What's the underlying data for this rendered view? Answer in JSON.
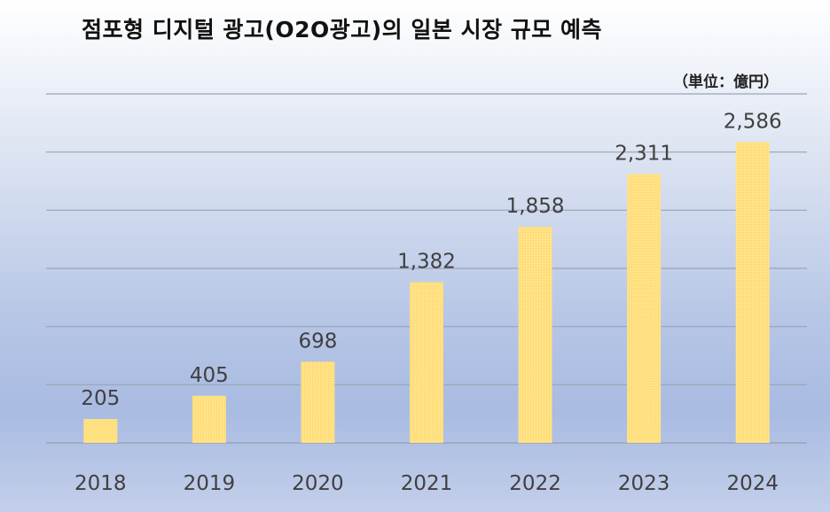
{
  "chart_data": {
    "type": "bar",
    "title": "점포형 디지털 광고(O2O광고)의 일본 시장 규모 예측",
    "unit_label": "（単位：億円）",
    "categories": [
      "2018",
      "2019",
      "2020",
      "2021",
      "2022",
      "2023",
      "2024"
    ],
    "values": [
      205,
      405,
      698,
      1382,
      1858,
      2311,
      2586
    ],
    "data_labels": [
      "205",
      "405",
      "698",
      "1,382",
      "1,858",
      "2,311",
      "2,586"
    ],
    "ylim": [
      0,
      3000
    ],
    "grid": true,
    "legend": "none",
    "colors": {
      "bar": "#ffe38a",
      "bar_dot": "#ffd35a",
      "grid": "#9aa3b5",
      "label": "#404040"
    }
  }
}
